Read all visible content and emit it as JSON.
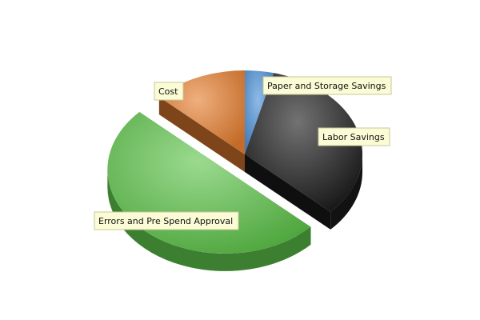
{
  "chart_data": {
    "type": "pie",
    "style": "3d",
    "title": "",
    "legend": "none",
    "slices": [
      {
        "label": "Paper and Storage Savings",
        "value": 4,
        "color": "#4a8fd6",
        "exploded": false
      },
      {
        "label": "Labor Savings",
        "value": 33,
        "color": "#1c1c1c",
        "exploded": false
      },
      {
        "label": "Errors and Pre Spend Approval",
        "value": 50,
        "color": "#5ec44a",
        "exploded": true
      },
      {
        "label": "Cost",
        "value": 13,
        "color": "#e57e2f",
        "exploded": false
      }
    ]
  }
}
